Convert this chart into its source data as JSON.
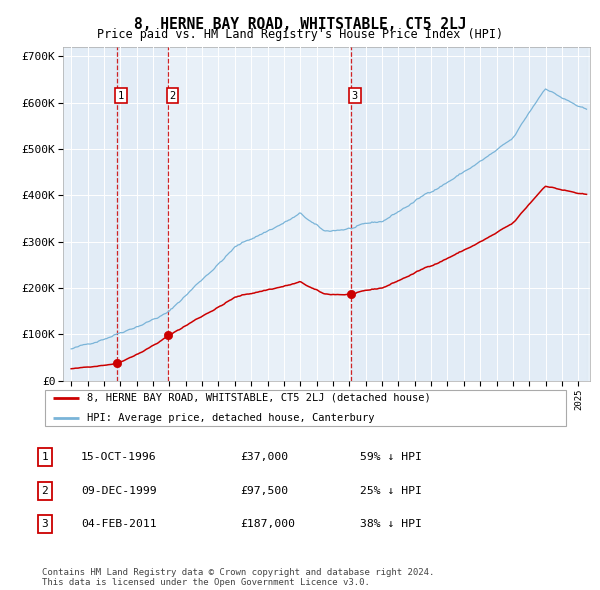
{
  "title": "8, HERNE BAY ROAD, WHITSTABLE, CT5 2LJ",
  "subtitle": "Price paid vs. HM Land Registry's House Price Index (HPI)",
  "xlim": [
    1993.5,
    2025.7
  ],
  "ylim": [
    0,
    720000
  ],
  "yticks": [
    0,
    100000,
    200000,
    300000,
    400000,
    500000,
    600000,
    700000
  ],
  "ytick_labels": [
    "£0",
    "£100K",
    "£200K",
    "£300K",
    "£400K",
    "£500K",
    "£600K",
    "£700K"
  ],
  "sale_dates": [
    1996.79,
    1999.94,
    2011.09
  ],
  "sale_prices": [
    37000,
    97500,
    187000
  ],
  "sale_labels": [
    "1",
    "2",
    "3"
  ],
  "hpi_color": "#7ab4d8",
  "price_color": "#cc0000",
  "dashed_line_color": "#cc0000",
  "shaded_color": "#deeaf5",
  "legend_entries": [
    "8, HERNE BAY ROAD, WHITSTABLE, CT5 2LJ (detached house)",
    "HPI: Average price, detached house, Canterbury"
  ],
  "table_rows": [
    [
      "1",
      "15-OCT-1996",
      "£37,000",
      "59% ↓ HPI"
    ],
    [
      "2",
      "09-DEC-1999",
      "£97,500",
      "25% ↓ HPI"
    ],
    [
      "3",
      "04-FEB-2011",
      "£187,000",
      "38% ↓ HPI"
    ]
  ],
  "footnote": "Contains HM Land Registry data © Crown copyright and database right 2024.\nThis data is licensed under the Open Government Licence v3.0.",
  "start_year": 1994.0,
  "end_year": 2025.5
}
